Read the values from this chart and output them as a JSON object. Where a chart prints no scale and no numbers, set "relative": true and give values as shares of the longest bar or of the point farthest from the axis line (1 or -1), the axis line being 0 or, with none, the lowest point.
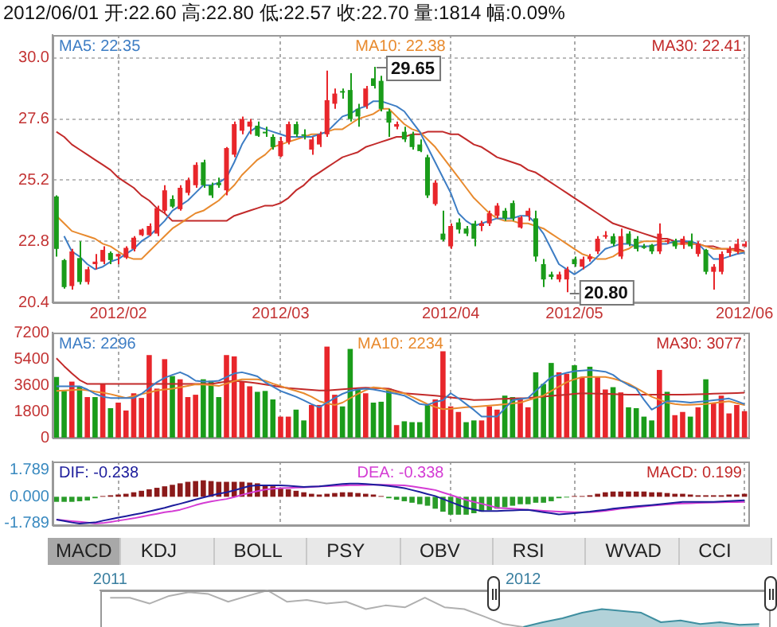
{
  "chart_data": [
    {
      "type": "candlestick",
      "title": "2012/06/01 开:22.60 高:22.80 低:22.57 收:22.70 量:1814 幅:0.09%",
      "categories": [
        null,
        null,
        null,
        null,
        null,
        null,
        null,
        null,
        "2012/02",
        null,
        null,
        null,
        null,
        null,
        null,
        null,
        null,
        null,
        null,
        null,
        null,
        null,
        null,
        null,
        null,
        null,
        null,
        null,
        null,
        "2012/03",
        null,
        null,
        null,
        null,
        null,
        null,
        null,
        null,
        null,
        null,
        null,
        null,
        null,
        null,
        null,
        null,
        null,
        null,
        null,
        null,
        null,
        "2012/04",
        null,
        null,
        null,
        null,
        null,
        null,
        null,
        null,
        null,
        null,
        null,
        null,
        null,
        null,
        null,
        "2012/05",
        null,
        null,
        null,
        null,
        null,
        null,
        null,
        null,
        null,
        null,
        null,
        null,
        null,
        null,
        null,
        null,
        null,
        null,
        null,
        null,
        null,
        "2012/06"
      ],
      "ohlc": [
        [
          24.56,
          24.6,
          22.2,
          22.5
        ],
        [
          22.06,
          22.1,
          20.94,
          21.0
        ],
        [
          21.04,
          22.5,
          20.9,
          22.4
        ],
        [
          22.14,
          22.8,
          21.1,
          21.2
        ],
        [
          21.2,
          21.8,
          21.1,
          21.7
        ],
        [
          21.9,
          22.3,
          21.7,
          22.0
        ],
        [
          22.0,
          22.6,
          21.9,
          22.46
        ],
        [
          22.34,
          22.4,
          21.9,
          22.06
        ],
        [
          22.2,
          22.3,
          21.9,
          22.3
        ],
        [
          22.16,
          22.6,
          22.1,
          22.54
        ],
        [
          22.5,
          23.0,
          22.4,
          22.94
        ],
        [
          23.04,
          23.3,
          23.0,
          23.26
        ],
        [
          23.04,
          23.5,
          23.0,
          23.4
        ],
        [
          23.1,
          24.2,
          23.0,
          24.1
        ],
        [
          24.0,
          25.0,
          23.9,
          24.8
        ],
        [
          24.46,
          24.6,
          24.1,
          24.16
        ],
        [
          24.06,
          25.0,
          24.0,
          24.9
        ],
        [
          24.7,
          25.3,
          24.6,
          25.2
        ],
        [
          25.0,
          25.9,
          24.9,
          25.8
        ],
        [
          25.9,
          26.0,
          24.9,
          25.0
        ],
        [
          25.0,
          25.1,
          24.5,
          24.6
        ],
        [
          25.1,
          25.3,
          24.9,
          25.0
        ],
        [
          24.8,
          26.5,
          24.6,
          26.46
        ],
        [
          26.2,
          27.5,
          26.1,
          27.4
        ],
        [
          27.14,
          27.7,
          27.0,
          27.6
        ],
        [
          27.3,
          27.6,
          27.0,
          27.5
        ],
        [
          27.34,
          27.5,
          26.9,
          26.94
        ],
        [
          27.1,
          27.3,
          26.9,
          27.06
        ],
        [
          26.9,
          27.0,
          26.4,
          26.5
        ],
        [
          26.14,
          26.9,
          26.1,
          26.74
        ],
        [
          26.7,
          27.5,
          26.6,
          27.4
        ],
        [
          27.4,
          27.5,
          26.9,
          27.0
        ],
        [
          27.0,
          27.2,
          26.8,
          26.96
        ],
        [
          26.4,
          26.9,
          26.2,
          26.8
        ],
        [
          26.6,
          27.1,
          26.5,
          27.0
        ],
        [
          27.0,
          29.5,
          26.9,
          28.34
        ],
        [
          28.2,
          28.8,
          28.0,
          28.6
        ],
        [
          28.7,
          28.8,
          28.4,
          28.64
        ],
        [
          28.74,
          29.4,
          27.5,
          27.6
        ],
        [
          28.0,
          28.2,
          27.3,
          27.7
        ],
        [
          28.1,
          28.9,
          28.0,
          28.8
        ],
        [
          29.2,
          29.65,
          28.8,
          28.9
        ],
        [
          29.1,
          29.3,
          27.9,
          28.0
        ],
        [
          27.9,
          28.0,
          26.9,
          27.46
        ],
        [
          27.3,
          27.5,
          27.2,
          27.4
        ],
        [
          27.1,
          27.3,
          26.7,
          26.8
        ],
        [
          27.0,
          27.1,
          26.4,
          26.5
        ],
        [
          26.6,
          26.8,
          26.3,
          26.34
        ],
        [
          26.1,
          26.2,
          24.5,
          24.6
        ],
        [
          24.26,
          25.2,
          24.2,
          25.1
        ],
        [
          23.1,
          24.0,
          22.8,
          22.86
        ],
        [
          22.6,
          23.5,
          22.5,
          23.4
        ],
        [
          23.54,
          23.7,
          23.1,
          23.26
        ],
        [
          23.3,
          23.4,
          23.0,
          23.1
        ],
        [
          23.5,
          23.6,
          22.6,
          22.9
        ],
        [
          23.4,
          23.6,
          23.2,
          23.5
        ],
        [
          23.5,
          24.0,
          23.4,
          23.9
        ],
        [
          23.8,
          24.3,
          23.7,
          24.2
        ],
        [
          24.0,
          24.1,
          23.6,
          23.7
        ],
        [
          24.3,
          24.4,
          23.6,
          23.7
        ],
        [
          23.34,
          23.8,
          23.3,
          23.74
        ],
        [
          23.8,
          24.1,
          23.6,
          24.0
        ],
        [
          23.7,
          24.0,
          22.0,
          22.2
        ],
        [
          21.9,
          22.1,
          21.0,
          21.3
        ],
        [
          21.5,
          21.6,
          21.3,
          21.4
        ],
        [
          21.3,
          21.6,
          21.2,
          21.5
        ],
        [
          21.3,
          21.8,
          20.8,
          21.7
        ],
        [
          22.1,
          22.2,
          21.8,
          21.9
        ],
        [
          21.8,
          22.2,
          21.7,
          22.1
        ],
        [
          22.1,
          22.3,
          22.0,
          22.2
        ],
        [
          22.4,
          23.0,
          22.3,
          22.9
        ],
        [
          23.0,
          23.2,
          22.9,
          23.04
        ],
        [
          23.0,
          23.1,
          22.6,
          22.7
        ],
        [
          22.2,
          23.3,
          22.1,
          23.0
        ],
        [
          23.1,
          23.2,
          22.6,
          22.7
        ],
        [
          22.9,
          23.0,
          22.4,
          22.5
        ],
        [
          22.6,
          22.7,
          22.5,
          22.56
        ],
        [
          22.66,
          22.7,
          22.3,
          22.4
        ],
        [
          22.4,
          23.5,
          22.3,
          23.1
        ],
        [
          22.8,
          22.9,
          22.7,
          22.84
        ],
        [
          22.8,
          22.9,
          22.5,
          22.6
        ],
        [
          22.66,
          23.0,
          22.5,
          22.9
        ],
        [
          22.8,
          23.1,
          22.5,
          22.6
        ],
        [
          22.3,
          22.8,
          22.2,
          22.7
        ],
        [
          22.46,
          22.5,
          21.5,
          21.6
        ],
        [
          21.6,
          21.9,
          20.9,
          21.8
        ],
        [
          21.6,
          22.4,
          21.5,
          22.3
        ],
        [
          22.34,
          22.6,
          22.2,
          22.5
        ],
        [
          22.4,
          22.9,
          22.3,
          22.7
        ],
        [
          22.6,
          22.8,
          22.57,
          22.7
        ]
      ],
      "colors": [
        "#1a9c1a",
        "#1a9c1a",
        "#e8262b",
        "#1a9c1a",
        "#e8262b",
        "#e8262b",
        "#e8262b",
        "#1a9c1a",
        "#e8262b",
        "#e8262b",
        "#e8262b",
        "#e8262b",
        "#e8262b",
        "#e8262b",
        "#e8262b",
        "#1a9c1a",
        "#e8262b",
        "#e8262b",
        "#e8262b",
        "#1a9c1a",
        "#1a9c1a",
        "#1a9c1a",
        "#e8262b",
        "#e8262b",
        "#e8262b",
        "#e8262b",
        "#1a9c1a",
        "#1a9c1a",
        "#1a9c1a",
        "#e8262b",
        "#e8262b",
        "#1a9c1a",
        "#1a9c1a",
        "#e8262b",
        "#e8262b",
        "#e8262b",
        "#e8262b",
        "#1a9c1a",
        "#1a9c1a",
        "#1a9c1a",
        "#e8262b",
        "#1a9c1a",
        "#1a9c1a",
        "#1a9c1a",
        "#e8262b",
        "#1a9c1a",
        "#1a9c1a",
        "#1a9c1a",
        "#1a9c1a",
        "#e8262b",
        "#1a9c1a",
        "#e8262b",
        "#1a9c1a",
        "#1a9c1a",
        "#1a9c1a",
        "#e8262b",
        "#e8262b",
        "#e8262b",
        "#1a9c1a",
        "#1a9c1a",
        "#e8262b",
        "#e8262b",
        "#1a9c1a",
        "#1a9c1a",
        "#1a9c1a",
        "#e8262b",
        "#e8262b",
        "#1a9c1a",
        "#e8262b",
        "#e8262b",
        "#e8262b",
        "#e8262b",
        "#1a9c1a",
        "#e8262b",
        "#1a9c1a",
        "#1a9c1a",
        "#1a9c1a",
        "#1a9c1a",
        "#e8262b",
        "#e8262b",
        "#1a9c1a",
        "#e8262b",
        "#1a9c1a",
        "#e8262b",
        "#1a9c1a",
        "#e8262b",
        "#e8262b",
        "#e8262b",
        "#e8262b",
        "#e8262b"
      ],
      "series": [
        {
          "type": "line",
          "name": "MA5: 22.35",
          "color": "#3d7dc4",
          "values": [
            null,
            23.0,
            22.4,
            22.2,
            21.9,
            21.7,
            21.8,
            22.0,
            22.1,
            22.3,
            22.5,
            22.8,
            23.0,
            23.3,
            23.6,
            24.0,
            24.2,
            24.4,
            24.7,
            25.0,
            25.0,
            25.1,
            25.3,
            25.9,
            26.6,
            27.1,
            27.3,
            27.2,
            27.1,
            27.0,
            26.9,
            26.9,
            26.9,
            26.9,
            27.0,
            27.1,
            27.4,
            27.7,
            27.8,
            28.0,
            28.1,
            28.3,
            28.3,
            28.2,
            28.1,
            27.9,
            27.5,
            27.1,
            26.5,
            25.9,
            25.3,
            24.7,
            23.9,
            23.6,
            23.4,
            23.5,
            23.6,
            23.7,
            23.7,
            23.7,
            23.8,
            23.8,
            23.5,
            23.1,
            22.5,
            21.9,
            21.7,
            21.5,
            21.7,
            21.9,
            22.2,
            22.5,
            22.6,
            22.7,
            22.7,
            22.6,
            22.6,
            22.6,
            22.7,
            22.7,
            22.8,
            22.8,
            22.8,
            22.7,
            22.4,
            22.1,
            22.1,
            22.2,
            22.3,
            22.35
          ]
        },
        {
          "type": "line",
          "name": "MA10: 22.38",
          "color": "#e88a2e",
          "values": [
            23.8,
            23.5,
            23.2,
            23.1,
            23.0,
            22.9,
            22.7,
            22.6,
            22.4,
            22.2,
            22.1,
            22.1,
            22.4,
            22.7,
            23.0,
            23.3,
            23.5,
            23.7,
            23.9,
            24.0,
            24.2,
            24.4,
            24.7,
            25.0,
            25.4,
            25.7,
            26.0,
            26.2,
            26.5,
            26.6,
            26.7,
            26.8,
            26.9,
            27.0,
            27.0,
            27.1,
            27.2,
            27.2,
            27.4,
            27.6,
            27.7,
            27.8,
            28.0,
            28.0,
            27.7,
            27.4,
            27.2,
            27.1,
            26.8,
            26.5,
            26.1,
            25.7,
            25.3,
            24.9,
            24.5,
            24.2,
            23.9,
            23.7,
            23.6,
            23.6,
            23.5,
            23.5,
            23.4,
            23.3,
            23.1,
            22.9,
            22.7,
            22.5,
            22.3,
            22.2,
            22.1,
            22.1,
            22.2,
            22.4,
            22.5,
            22.7,
            22.8,
            22.8,
            22.8,
            22.8,
            22.7,
            22.7,
            22.7,
            22.7,
            22.6,
            22.5,
            22.5,
            22.5,
            22.4,
            22.38
          ]
        },
        {
          "type": "line",
          "name": "MA30: 22.41",
          "color": "#c22a2a",
          "values": [
            27.1,
            26.9,
            26.6,
            26.4,
            26.2,
            26.0,
            25.8,
            25.6,
            25.3,
            25.1,
            24.9,
            24.6,
            24.4,
            24.1,
            23.9,
            23.6,
            23.6,
            23.6,
            23.6,
            23.6,
            23.6,
            23.6,
            23.6,
            23.8,
            23.9,
            24.0,
            24.1,
            24.2,
            24.2,
            24.3,
            24.5,
            24.8,
            25.0,
            25.3,
            25.5,
            25.7,
            25.9,
            26.1,
            26.2,
            26.3,
            26.5,
            26.6,
            26.7,
            26.8,
            26.9,
            26.9,
            27.0,
            27.0,
            27.1,
            27.1,
            27.1,
            27.0,
            27.0,
            26.8,
            26.6,
            26.5,
            26.3,
            26.1,
            26.0,
            25.9,
            25.8,
            25.6,
            25.5,
            25.3,
            25.1,
            24.9,
            24.7,
            24.5,
            24.3,
            24.1,
            23.9,
            23.7,
            23.5,
            23.4,
            23.3,
            23.2,
            23.1,
            23.0,
            22.9,
            22.9,
            22.8,
            22.8,
            22.7,
            22.7,
            22.6,
            22.6,
            22.5,
            22.5,
            22.5,
            22.41
          ]
        }
      ],
      "ylim": [
        20.4,
        30.9
      ],
      "yticks": [
        20.4,
        22.8,
        25.2,
        27.6,
        {
          "value": 30,
          "label": "30.0"
        }
      ],
      "grid": true,
      "legend": "top",
      "annotations": [
        {
          "text": "29.65",
          "y": 29.65
        },
        {
          "text": "20.80",
          "y": 20.8
        }
      ]
    },
    {
      "type": "bar",
      "categories": [
        null,
        null,
        null,
        null,
        null,
        null,
        null,
        null,
        "2012/02",
        null,
        null,
        null,
        null,
        null,
        null,
        null,
        null,
        null,
        null,
        null,
        null,
        null,
        null,
        null,
        null,
        null,
        null,
        null,
        null,
        "2012/03",
        null,
        null,
        null,
        null,
        null,
        null,
        null,
        null,
        null,
        null,
        null,
        null,
        null,
        null,
        null,
        null,
        null,
        null,
        null,
        null,
        null,
        "2012/04",
        null,
        null,
        null,
        null,
        null,
        null,
        null,
        null,
        null,
        null,
        null,
        null,
        null,
        null,
        null,
        "2012/05",
        null,
        null,
        null,
        null,
        null,
        null,
        null,
        null,
        null,
        null,
        null,
        null,
        null,
        null,
        null,
        null,
        null,
        null,
        null,
        null,
        null,
        "2012/06"
      ],
      "series": [
        {
          "type": "bar",
          "colors": [
            "#1a9c1a",
            "#1a9c1a",
            "#e8262b",
            "#1a9c1a",
            "#e8262b",
            "#1a9c1a",
            "#e8262b",
            "#1a9c1a",
            "#e8262b",
            "#e8262b",
            "#e8262b",
            "#e8262b",
            "#e8262b",
            "#e8262b",
            "#e8262b",
            "#1a9c1a",
            "#e8262b",
            "#e8262b",
            "#e8262b",
            "#1a9c1a",
            "#1a9c1a",
            "#1a9c1a",
            "#e8262b",
            "#e8262b",
            "#e8262b",
            "#e8262b",
            "#1a9c1a",
            "#1a9c1a",
            "#1a9c1a",
            "#e8262b",
            "#e8262b",
            "#1a9c1a",
            "#1a9c1a",
            "#e8262b",
            "#e8262b",
            "#e8262b",
            "#e8262b",
            "#1a9c1a",
            "#1a9c1a",
            "#1a9c1a",
            "#e8262b",
            "#1a9c1a",
            "#1a9c1a",
            "#1a9c1a",
            "#e8262b",
            "#1a9c1a",
            "#1a9c1a",
            "#1a9c1a",
            "#1a9c1a",
            "#e8262b",
            "#e8262b",
            "#e8262b",
            "#e8262b",
            "#1a9c1a",
            "#1a9c1a",
            "#e8262b",
            "#e8262b",
            "#e8262b",
            "#1a9c1a",
            "#1a9c1a",
            "#e8262b",
            "#e8262b",
            "#1a9c1a",
            "#1a9c1a",
            "#1a9c1a",
            "#e8262b",
            "#e8262b",
            "#1a9c1a",
            "#e8262b",
            "#1a9c1a",
            "#e8262b",
            "#e8262b",
            "#1a9c1a",
            "#e8262b",
            "#1a9c1a",
            "#1a9c1a",
            "#1a9c1a",
            "#1a9c1a",
            "#e8262b",
            "#1a9c1a",
            "#e8262b",
            "#e8262b",
            "#1a9c1a",
            "#e8262b",
            "#1a9c1a",
            "#e8262b",
            "#e8262b",
            "#e8262b",
            "#e8262b",
            "#e8262b"
          ],
          "values": [
            4160,
            3200,
            3840,
            3520,
            2780,
            2780,
            3680,
            2020,
            2400,
            1860,
            3040,
            2720,
            5660,
            3360,
            5380,
            4220,
            4000,
            2780,
            2940,
            4000,
            3900,
            2780,
            5660,
            5570,
            3840,
            3520,
            3140,
            3200,
            2620,
            1440,
            1440,
            1920,
            1180,
            2240,
            2240,
            6240,
            2940,
            2140,
            6080,
            3360,
            3040,
            2400,
            2460,
            3360,
            860,
            1120,
            1060,
            1060,
            2240,
            2620,
            5920,
            2140,
            1760,
            1060,
            1180,
            1180,
            2140,
            1920,
            2880,
            2780,
            2620,
            2080,
            4480,
            3680,
            5120,
            4480,
            4380,
            4960,
            4160,
            4860,
            4160,
            3300,
            3460,
            3100,
            2080,
            2020,
            1440,
            1180,
            4640,
            3140,
            1540,
            1760,
            1440,
            2080,
            4000,
            2400,
            2880,
            1660,
            2240,
            1814
          ]
        },
        {
          "type": "line",
          "name": "MA5: 2296",
          "color": "#3d7dc4",
          "values": [
            3520,
            3520,
            3520,
            3520,
            3300,
            3000,
            2800,
            2720,
            2720,
            2720,
            2720,
            3000,
            3400,
            3800,
            4100,
            4300,
            4480,
            4250,
            3900,
            3840,
            3840,
            3900,
            4150,
            4400,
            4480,
            4350,
            4200,
            3800,
            3500,
            3200,
            3000,
            2800,
            2560,
            2300,
            2080,
            2400,
            2720,
            3000,
            3200,
            3300,
            3360,
            3300,
            3200,
            3100,
            3000,
            2880,
            2600,
            2300,
            2240,
            2450,
            2560,
            3040,
            2700,
            2300,
            1900,
            1440,
            1440,
            1440,
            2000,
            2560,
            2640,
            2720,
            3200,
            3680,
            4160,
            4300,
            4450,
            4550,
            4600,
            4640,
            4580,
            4520,
            4300,
            3900,
            3600,
            3360,
            2600,
            1920,
            2200,
            2500,
            2500,
            2450,
            2400,
            2450,
            2500,
            2560,
            2620,
            2680,
            2500,
            2296
          ]
        },
        {
          "type": "line",
          "name": "MA10: 2234",
          "color": "#e88a2e",
          "values": [
            3200,
            3230,
            3260,
            3300,
            3250,
            3150,
            3080,
            2980,
            2850,
            2720,
            2850,
            2980,
            3100,
            3230,
            3300,
            3360,
            3450,
            3550,
            3650,
            3640,
            3600,
            3540,
            3700,
            3880,
            4000,
            4000,
            4000,
            3900,
            3700,
            3540,
            3350,
            3200,
            3040,
            2800,
            2500,
            2350,
            2240,
            2400,
            2700,
            3000,
            3250,
            3450,
            3400,
            3250,
            3100,
            3040,
            2800,
            2550,
            2300,
            2100,
            1950,
            1980,
            2030,
            2080,
            2120,
            2160,
            2200,
            2240,
            2290,
            2340,
            2400,
            2560,
            2730,
            2880,
            3200,
            3500,
            3800,
            4000,
            4150,
            4160,
            4160,
            4160,
            4050,
            3900,
            3700,
            3400,
            3100,
            2800,
            2600,
            2400,
            2300,
            2250,
            2250,
            2280,
            2300,
            2370,
            2430,
            2500,
            2360,
            2234
          ]
        },
        {
          "type": "line",
          "name": "MA30: 3077",
          "color": "#c22a2a",
          "values": [
            5440,
            4900,
            4400,
            3950,
            3680,
            3680,
            3680,
            3680,
            3680,
            3680,
            3680,
            3680,
            3680,
            3680,
            3680,
            3680,
            3680,
            3680,
            3680,
            3680,
            3680,
            3760,
            3850,
            3900,
            3850,
            3790,
            3720,
            3640,
            3560,
            3480,
            3400,
            3350,
            3310,
            3270,
            3230,
            3230,
            3270,
            3310,
            3350,
            3390,
            3420,
            3400,
            3380,
            3360,
            3200,
            3040,
            3000,
            2960,
            2920,
            2880,
            2820,
            2760,
            2700,
            2640,
            2580,
            2590,
            2610,
            2640,
            2660,
            2680,
            2700,
            2720,
            2770,
            2810,
            2860,
            2900,
            2950,
            3000,
            3040,
            3030,
            3010,
            3000,
            2980,
            2960,
            2940,
            2940,
            2940,
            2940,
            2940,
            2940,
            2940,
            2940,
            2960,
            2970,
            2990,
            3010,
            3030,
            3040,
            3060,
            3077
          ]
        }
      ],
      "ylim": [
        0,
        7200
      ],
      "yticks": [
        0,
        1800,
        3600,
        5400,
        7200
      ],
      "grid": "x",
      "legend": "top",
      "tick_labels": "y"
    },
    {
      "type": "line",
      "categories": [
        null,
        null,
        null,
        null,
        null,
        null,
        null,
        null,
        "2012/02",
        null,
        null,
        null,
        null,
        null,
        null,
        null,
        null,
        null,
        null,
        null,
        null,
        null,
        null,
        null,
        null,
        null,
        null,
        null,
        null,
        "2012/03",
        null,
        null,
        null,
        null,
        null,
        null,
        null,
        null,
        null,
        null,
        null,
        null,
        null,
        null,
        null,
        null,
        null,
        null,
        null,
        null,
        null,
        "2012/04",
        null,
        null,
        null,
        null,
        null,
        null,
        null,
        null,
        null,
        null,
        null,
        null,
        null,
        null,
        null,
        "2012/05",
        null,
        null,
        null,
        null,
        null,
        null,
        null,
        null,
        null,
        null,
        null,
        null,
        null,
        null,
        null,
        null,
        null,
        null,
        null,
        null,
        null,
        "2012/06"
      ],
      "series": [
        {
          "type": "line",
          "name": "DIF: -0.238",
          "color": "#1c1c9c",
          "values": [
            -1.53,
            -1.62,
            -1.72,
            -1.79,
            -1.76,
            -1.72,
            -1.6,
            -1.5,
            -1.39,
            -1.3,
            -1.2,
            -1.1,
            -0.98,
            -0.86,
            -0.74,
            -0.6,
            -0.47,
            -0.33,
            -0.18,
            -0.05,
            0.08,
            0.2,
            0.3,
            0.43,
            0.58,
            0.72,
            0.76,
            0.76,
            0.76,
            0.76,
            0.73,
            0.7,
            0.66,
            0.68,
            0.7,
            0.75,
            0.8,
            0.85,
            0.88,
            0.88,
            0.86,
            0.82,
            0.78,
            0.72,
            0.66,
            0.58,
            0.45,
            0.32,
            0.18,
            0.05,
            -0.15,
            -0.35,
            -0.55,
            -0.74,
            -0.85,
            -0.95,
            -0.95,
            -0.95,
            -0.93,
            -0.91,
            -0.89,
            -0.87,
            -0.95,
            -1.03,
            -1.1,
            -1.18,
            -1.14,
            -1.1,
            -1.05,
            -1.0,
            -0.93,
            -0.87,
            -0.8,
            -0.74,
            -0.69,
            -0.64,
            -0.6,
            -0.55,
            -0.5,
            -0.45,
            -0.39,
            -0.34,
            -0.34,
            -0.34,
            -0.34,
            -0.34,
            -0.31,
            -0.29,
            -0.26,
            -0.238
          ]
        },
        {
          "type": "line",
          "name": "DEA: -0.338",
          "color": "#d43cd4",
          "values": [
            -1.53,
            -1.58,
            -1.63,
            -1.68,
            -1.73,
            -1.78,
            -1.76,
            -1.69,
            -1.6,
            -1.52,
            -1.44,
            -1.34,
            -1.24,
            -1.14,
            -1.04,
            -0.97,
            -0.87,
            -0.72,
            -0.56,
            -0.42,
            -0.32,
            -0.23,
            -0.15,
            -0.02,
            0.13,
            0.26,
            0.38,
            0.48,
            0.53,
            0.57,
            0.59,
            0.61,
            0.63,
            0.66,
            0.69,
            0.71,
            0.73,
            0.75,
            0.77,
            0.78,
            0.79,
            0.8,
            0.8,
            0.79,
            0.78,
            0.76,
            0.7,
            0.62,
            0.54,
            0.45,
            0.28,
            0.12,
            -0.05,
            -0.21,
            -0.34,
            -0.47,
            -0.6,
            -0.74,
            -0.77,
            -0.8,
            -0.84,
            -0.87,
            -0.9,
            -0.94,
            -0.97,
            -1.0,
            -1.02,
            -1.04,
            -1.04,
            -1.03,
            -0.99,
            -0.94,
            -0.88,
            -0.8,
            -0.75,
            -0.7,
            -0.65,
            -0.6,
            -0.56,
            -0.52,
            -0.48,
            -0.45,
            -0.43,
            -0.41,
            -0.4,
            -0.38,
            -0.37,
            -0.36,
            -0.35,
            -0.338
          ]
        },
        {
          "type": "bar",
          "name": "MACD: 0.199",
          "color": "#c22a2a",
          "colors": [
            "#2a9c2a",
            "#2a9c2a",
            "#2a9c2a",
            "#2a9c2a",
            "#2a9c2a",
            "#2a9c2a",
            "#8b1a1a",
            "#8b1a1a",
            "#8b1a1a",
            "#8b1a1a",
            "#8b1a1a",
            "#8b1a1a",
            "#8b1a1a",
            "#8b1a1a",
            "#8b1a1a",
            "#8b1a1a",
            "#8b1a1a",
            "#8b1a1a",
            "#8b1a1a",
            "#8b1a1a",
            "#8b1a1a",
            "#8b1a1a",
            "#8b1a1a",
            "#8b1a1a",
            "#8b1a1a",
            "#8b1a1a",
            "#8b1a1a",
            "#8b1a1a",
            "#8b1a1a",
            "#8b1a1a",
            "#8b1a1a",
            "#8b1a1a",
            "#8b1a1a",
            "#8b1a1a",
            "#8b1a1a",
            "#8b1a1a",
            "#8b1a1a",
            "#8b1a1a",
            "#8b1a1a",
            "#8b1a1a",
            "#8b1a1a",
            "#8b1a1a",
            "#8b1a1a",
            "#2a9c2a",
            "#2a9c2a",
            "#2a9c2a",
            "#2a9c2a",
            "#2a9c2a",
            "#2a9c2a",
            "#2a9c2a",
            "#2a9c2a",
            "#2a9c2a",
            "#2a9c2a",
            "#2a9c2a",
            "#2a9c2a",
            "#2a9c2a",
            "#2a9c2a",
            "#2a9c2a",
            "#2a9c2a",
            "#2a9c2a",
            "#2a9c2a",
            "#2a9c2a",
            "#2a9c2a",
            "#2a9c2a",
            "#2a9c2a",
            "#2a9c2a",
            "#2a9c2a",
            "#8b1a1a",
            "#8b1a1a",
            "#8b1a1a",
            "#8b1a1a",
            "#8b1a1a",
            "#8b1a1a",
            "#8b1a1a",
            "#8b1a1a",
            "#8b1a1a",
            "#8b1a1a",
            "#8b1a1a",
            "#8b1a1a",
            "#8b1a1a",
            "#8b1a1a",
            "#8b1a1a",
            "#8b1a1a",
            "#8b1a1a",
            "#8b1a1a",
            "#8b1a1a",
            "#8b1a1a",
            "#8b1a1a",
            "#8b1a1a",
            "#8b1a1a"
          ],
          "values": [
            -0.34,
            -0.34,
            -0.34,
            -0.3,
            -0.25,
            -0.1,
            0.05,
            0.1,
            0.15,
            0.2,
            0.3,
            0.4,
            0.5,
            0.6,
            0.7,
            0.8,
            0.9,
            1.0,
            1.05,
            1.1,
            1.05,
            1.0,
            1.0,
            1.0,
            1.0,
            0.95,
            0.9,
            0.8,
            0.7,
            0.6,
            0.5,
            0.4,
            0.3,
            0.2,
            0.15,
            0.2,
            0.25,
            0.3,
            0.3,
            0.25,
            0.2,
            0.15,
            0.05,
            -0.1,
            -0.2,
            -0.3,
            -0.4,
            -0.5,
            -0.6,
            -0.8,
            -1.0,
            -1.2,
            -1.2,
            -1.2,
            -1.1,
            -1.0,
            -0.9,
            -0.8,
            -0.7,
            -0.6,
            -0.5,
            -0.5,
            -0.4,
            -0.4,
            -0.3,
            -0.1,
            -0.05,
            0.05,
            0.05,
            0.1,
            0.2,
            0.3,
            0.35,
            0.35,
            0.35,
            0.35,
            0.35,
            0.3,
            0.3,
            0.25,
            0.2,
            0.2,
            0.15,
            0.1,
            0.1,
            0.1,
            0.1,
            0.15,
            0.15,
            0.199
          ]
        }
      ],
      "ylim": [
        -1.9,
        2.36
      ],
      "yticks": [
        -1.789,
        {
          "value": 0,
          "label": "0.000"
        },
        1.789
      ],
      "grid": "x",
      "legend": "top",
      "tick_labels": "y"
    },
    {
      "type": "other",
      "annotations": [
        "MACD",
        "KDJ",
        "BOLL",
        "PSY",
        "OBV",
        "RSI",
        "WVAD",
        "CCI"
      ]
    },
    {
      "type": "line",
      "relative": true,
      "categories": [
        "2011",
        null,
        null,
        null,
        null,
        null,
        null,
        null,
        null,
        null,
        null,
        null,
        null,
        null,
        null,
        null,
        null,
        null,
        null,
        null,
        null,
        "2012",
        null,
        null,
        null,
        null,
        null,
        null,
        null,
        null,
        null,
        null,
        null,
        null
      ],
      "series": [
        {
          "type": "line",
          "color": "#b0b0b0",
          "values": [
            0.8,
            0.8,
            0.64,
            0.85,
            0.95,
            0.9,
            0.69,
            0.85,
            1.0,
            0.69,
            0.74,
            0.64,
            0.69,
            0.49,
            0.59,
            0.54,
            0.8,
            0.54,
            0.49,
            0.29,
            0.08,
            0,
            null,
            null,
            null,
            null,
            null,
            null,
            null,
            null,
            null,
            null,
            null,
            null
          ]
        },
        {
          "type": "area",
          "color": "#3f8fa0",
          "values": [
            null,
            null,
            null,
            null,
            null,
            null,
            null,
            null,
            null,
            null,
            null,
            null,
            null,
            null,
            null,
            null,
            null,
            null,
            null,
            null,
            null,
            0,
            0.13,
            0.24,
            0.39,
            0.49,
            0.44,
            0.39,
            0.13,
            0.18,
            0.08,
            0.13,
            0.06,
            0.08
          ]
        }
      ]
    }
  ]
}
